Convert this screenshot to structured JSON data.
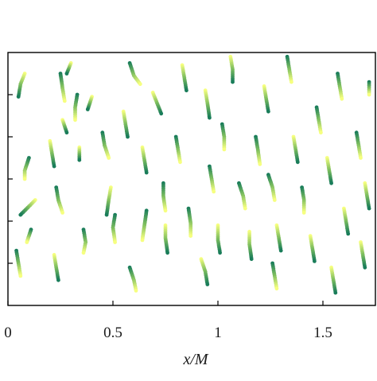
{
  "chart_data": {
    "type": "scatter",
    "xlabel": "x/M",
    "ylabel": "",
    "xlim": [
      0,
      1.75
    ],
    "ylim": [
      0,
      1.2
    ],
    "grid": false,
    "x_ticks": [
      {
        "value": 0,
        "label": "0"
      },
      {
        "value": 0.5,
        "label": "0.5"
      },
      {
        "value": 1,
        "label": "1"
      },
      {
        "value": 1.5,
        "label": "1.5"
      }
    ],
    "y_ticks": [
      0.2,
      0.4,
      0.6,
      0.8,
      1.0
    ],
    "color_gradient": [
      "#1a7d5a",
      "#7fbf5f",
      "#f6ff80"
    ],
    "series": [
      {
        "points": [
          [
            0.08,
            1.1
          ],
          [
            0.06,
            1.05
          ],
          [
            0.05,
            0.99
          ]
        ]
      },
      {
        "points": [
          [
            0.1,
            0.7
          ],
          [
            0.08,
            0.64
          ],
          [
            0.08,
            0.6
          ]
        ]
      },
      {
        "points": [
          [
            0.13,
            0.5
          ],
          [
            0.1,
            0.47
          ],
          [
            0.06,
            0.43
          ]
        ]
      },
      {
        "points": [
          [
            0.11,
            0.36
          ],
          [
            0.09,
            0.3
          ]
        ]
      },
      {
        "points": [
          [
            0.2,
            0.78
          ],
          [
            0.21,
            0.72
          ],
          [
            0.22,
            0.66
          ]
        ]
      },
      {
        "points": [
          [
            0.25,
            1.1
          ],
          [
            0.26,
            1.03
          ],
          [
            0.27,
            0.97
          ]
        ]
      },
      {
        "points": [
          [
            0.26,
            0.88
          ],
          [
            0.28,
            0.82
          ]
        ]
      },
      {
        "points": [
          [
            0.23,
            0.56
          ],
          [
            0.24,
            0.5
          ],
          [
            0.26,
            0.44
          ]
        ]
      },
      {
        "points": [
          [
            0.3,
            1.15
          ],
          [
            0.28,
            1.1
          ]
        ]
      },
      {
        "points": [
          [
            0.33,
            1.0
          ],
          [
            0.32,
            0.94
          ],
          [
            0.32,
            0.88
          ]
        ]
      },
      {
        "points": [
          [
            0.34,
            0.75
          ],
          [
            0.34,
            0.69
          ]
        ]
      },
      {
        "points": [
          [
            0.36,
            0.36
          ],
          [
            0.37,
            0.3
          ],
          [
            0.36,
            0.25
          ]
        ]
      },
      {
        "points": [
          [
            0.4,
            0.99
          ],
          [
            0.38,
            0.93
          ]
        ]
      },
      {
        "points": [
          [
            0.45,
            0.82
          ],
          [
            0.46,
            0.76
          ],
          [
            0.48,
            0.7
          ]
        ]
      },
      {
        "points": [
          [
            0.49,
            0.56
          ],
          [
            0.48,
            0.5
          ],
          [
            0.47,
            0.43
          ]
        ]
      },
      {
        "points": [
          [
            0.51,
            0.43
          ],
          [
            0.5,
            0.37
          ],
          [
            0.51,
            0.3
          ]
        ]
      },
      {
        "points": [
          [
            0.55,
            0.92
          ],
          [
            0.56,
            0.86
          ],
          [
            0.57,
            0.8
          ]
        ]
      },
      {
        "points": [
          [
            0.58,
            1.15
          ],
          [
            0.6,
            1.09
          ],
          [
            0.63,
            1.05
          ]
        ]
      },
      {
        "points": [
          [
            0.64,
            0.75
          ],
          [
            0.65,
            0.69
          ],
          [
            0.66,
            0.63
          ]
        ]
      },
      {
        "points": [
          [
            0.66,
            0.45
          ],
          [
            0.65,
            0.38
          ],
          [
            0.64,
            0.31
          ]
        ]
      },
      {
        "points": [
          [
            0.69,
            1.01
          ],
          [
            0.71,
            0.96
          ],
          [
            0.73,
            0.91
          ]
        ]
      },
      {
        "points": [
          [
            0.74,
            0.58
          ],
          [
            0.74,
            0.52
          ],
          [
            0.75,
            0.45
          ]
        ]
      },
      {
        "points": [
          [
            0.75,
            0.38
          ],
          [
            0.75,
            0.32
          ],
          [
            0.76,
            0.25
          ]
        ]
      },
      {
        "points": [
          [
            0.8,
            0.8
          ],
          [
            0.81,
            0.74
          ],
          [
            0.82,
            0.68
          ]
        ]
      },
      {
        "points": [
          [
            0.83,
            1.14
          ],
          [
            0.84,
            1.08
          ],
          [
            0.85,
            1.02
          ]
        ]
      },
      {
        "points": [
          [
            0.86,
            0.46
          ],
          [
            0.87,
            0.39
          ],
          [
            0.87,
            0.33
          ]
        ]
      },
      {
        "points": [
          [
            0.94,
            1.02
          ],
          [
            0.95,
            0.96
          ],
          [
            0.96,
            0.89
          ]
        ]
      },
      {
        "points": [
          [
            0.96,
            0.66
          ],
          [
            0.97,
            0.6
          ],
          [
            0.98,
            0.54
          ]
        ]
      },
      {
        "points": [
          [
            1.0,
            0.38
          ],
          [
            1.0,
            0.31
          ],
          [
            1.01,
            0.25
          ]
        ]
      },
      {
        "points": [
          [
            1.02,
            0.86
          ],
          [
            1.03,
            0.8
          ],
          [
            1.03,
            0.74
          ]
        ]
      },
      {
        "points": [
          [
            1.06,
            1.18
          ],
          [
            1.07,
            1.12
          ],
          [
            1.07,
            1.06
          ]
        ]
      },
      {
        "points": [
          [
            1.1,
            0.58
          ],
          [
            1.12,
            0.52
          ],
          [
            1.13,
            0.46
          ]
        ]
      },
      {
        "points": [
          [
            1.15,
            0.35
          ],
          [
            1.15,
            0.29
          ],
          [
            1.16,
            0.22
          ]
        ]
      },
      {
        "points": [
          [
            1.18,
            0.8
          ],
          [
            1.19,
            0.74
          ],
          [
            1.2,
            0.67
          ]
        ]
      },
      {
        "points": [
          [
            1.22,
            1.04
          ],
          [
            1.23,
            0.98
          ],
          [
            1.24,
            0.92
          ]
        ]
      },
      {
        "points": [
          [
            1.24,
            0.62
          ],
          [
            1.26,
            0.56
          ],
          [
            1.27,
            0.5
          ]
        ]
      },
      {
        "points": [
          [
            1.28,
            0.38
          ],
          [
            1.29,
            0.32
          ],
          [
            1.3,
            0.26
          ]
        ]
      },
      {
        "points": [
          [
            1.33,
            1.18
          ],
          [
            1.34,
            1.12
          ],
          [
            1.35,
            1.06
          ]
        ]
      },
      {
        "points": [
          [
            1.36,
            0.8
          ],
          [
            1.37,
            0.74
          ],
          [
            1.38,
            0.68
          ]
        ]
      },
      {
        "points": [
          [
            1.4,
            0.56
          ],
          [
            1.41,
            0.5
          ],
          [
            1.41,
            0.44
          ]
        ]
      },
      {
        "points": [
          [
            1.44,
            0.33
          ],
          [
            1.45,
            0.27
          ],
          [
            1.46,
            0.21
          ]
        ]
      },
      {
        "points": [
          [
            1.47,
            0.94
          ],
          [
            1.48,
            0.88
          ],
          [
            1.49,
            0.82
          ]
        ]
      },
      {
        "points": [
          [
            1.52,
            0.7
          ],
          [
            1.53,
            0.64
          ],
          [
            1.54,
            0.58
          ]
        ]
      },
      {
        "points": [
          [
            1.57,
            1.1
          ],
          [
            1.58,
            1.04
          ],
          [
            1.59,
            0.98
          ]
        ]
      },
      {
        "points": [
          [
            1.6,
            0.46
          ],
          [
            1.61,
            0.4
          ],
          [
            1.62,
            0.34
          ]
        ]
      },
      {
        "points": [
          [
            1.66,
            0.82
          ],
          [
            1.67,
            0.76
          ],
          [
            1.68,
            0.7
          ]
        ]
      },
      {
        "points": [
          [
            1.7,
            0.58
          ],
          [
            1.71,
            0.52
          ],
          [
            1.72,
            0.46
          ]
        ]
      },
      {
        "points": [
          [
            1.72,
            1.06
          ],
          [
            1.72,
            1.0
          ]
        ]
      },
      {
        "points": [
          [
            1.68,
            0.3
          ],
          [
            1.69,
            0.24
          ],
          [
            1.7,
            0.18
          ]
        ]
      },
      {
        "points": [
          [
            0.04,
            0.26
          ],
          [
            0.05,
            0.2
          ],
          [
            0.06,
            0.14
          ]
        ]
      },
      {
        "points": [
          [
            0.22,
            0.24
          ],
          [
            0.23,
            0.18
          ],
          [
            0.24,
            0.12
          ]
        ]
      },
      {
        "points": [
          [
            0.58,
            0.18
          ],
          [
            0.6,
            0.12
          ],
          [
            0.61,
            0.07
          ]
        ]
      },
      {
        "points": [
          [
            0.92,
            0.22
          ],
          [
            0.94,
            0.16
          ],
          [
            0.95,
            0.1
          ]
        ]
      },
      {
        "points": [
          [
            1.26,
            0.2
          ],
          [
            1.27,
            0.14
          ],
          [
            1.28,
            0.08
          ]
        ]
      },
      {
        "points": [
          [
            1.54,
            0.18
          ],
          [
            1.55,
            0.12
          ],
          [
            1.56,
            0.06
          ]
        ]
      }
    ]
  }
}
